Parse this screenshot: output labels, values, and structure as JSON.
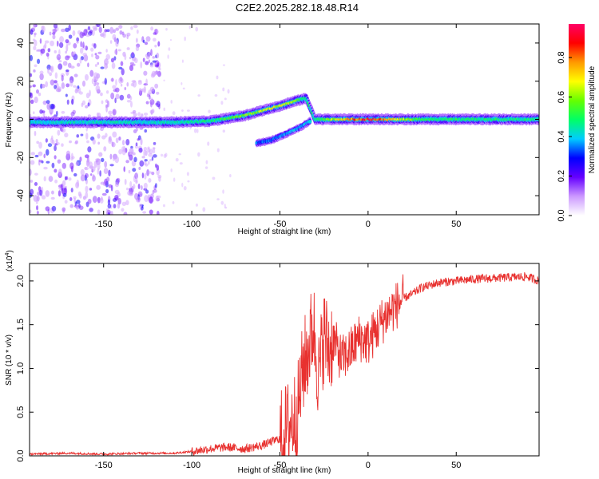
{
  "title": "C2E2.2025.282.18.48.R14",
  "chart_data": [
    {
      "type": "heatmap",
      "xlabel": "Height of straight line (km)",
      "ylabel": "Frequency (Hz)",
      "xlim": [
        -192,
        97
      ],
      "ylim": [
        -50,
        50
      ],
      "xticks": [
        -150,
        -100,
        -50,
        0,
        50
      ],
      "xtick_labels": [
        "-150",
        "-100",
        "-50",
        "0",
        "50"
      ],
      "yticks": [
        -40,
        -20,
        0,
        20,
        40
      ],
      "ytick_labels": [
        "-40",
        "-20",
        "0",
        "20",
        "40"
      ],
      "colorbar": {
        "label": "Normalized spectral amplitude",
        "range": [
          0,
          0.97
        ],
        "ticks": [
          0,
          0.2,
          0.4,
          0.6,
          0.8
        ],
        "tick_labels": [
          "0.0",
          "0.2",
          "0.4",
          "0.6",
          "0.8"
        ],
        "colors": [
          "#ffffff",
          "#cc99ff",
          "#6600ff",
          "#0000ff",
          "#00ccff",
          "#00ff66",
          "#66ff00",
          "#ffff00",
          "#ff9900",
          "#ff0000",
          "#ff0066"
        ]
      },
      "features": [
        {
          "name": "carrier",
          "x": [
            -192,
            -110,
            -90,
            -70,
            -50,
            -40,
            -35,
            -30,
            0,
            30,
            60,
            97
          ],
          "y": [
            -1.5,
            -1.5,
            -1,
            2,
            7,
            10,
            11,
            0,
            0,
            0,
            0,
            0
          ],
          "amplitude": [
            0.45,
            0.45,
            0.5,
            0.6,
            0.7,
            0.6,
            0.5,
            0.5,
            0.95,
            0.55,
            0.5,
            0.5
          ]
        },
        {
          "name": "lower-branch",
          "x": [
            -63,
            -55,
            -45,
            -38,
            -33
          ],
          "y": [
            -12.5,
            -11,
            -7,
            -4,
            -1
          ],
          "amplitude": [
            0.35,
            0.35,
            0.4,
            0.4,
            0.4
          ]
        }
      ]
    },
    {
      "type": "line",
      "xlabel": "Height of straight line (km)",
      "ylabel": "SNR (10 * v/v)",
      "ylabel_multiplier": "(x10",
      "ylabel_exponent": "4",
      "ylabel_close": ")",
      "xlim": [
        -192,
        97
      ],
      "ylim": [
        0,
        2.2
      ],
      "xticks": [
        -150,
        -100,
        -50,
        0,
        50
      ],
      "xtick_labels": [
        "-150",
        "-100",
        "-50",
        "0",
        "50"
      ],
      "yticks": [
        0,
        0.5,
        1.0,
        1.5,
        2.0
      ],
      "ytick_labels": [
        "0.0",
        "0.5",
        "1.0",
        "1.5",
        "2.0"
      ],
      "series": [
        {
          "color": "#e8312f",
          "x": [
            -192,
            -170,
            -150,
            -130,
            -110,
            -100,
            -90,
            -80,
            -70,
            -60,
            -50,
            -45,
            -40,
            -37,
            -34,
            -31,
            -28,
            -25,
            -22,
            -20,
            -15,
            -10,
            -5,
            0,
            5,
            10,
            15,
            20,
            25,
            30,
            40,
            50,
            60,
            70,
            80,
            90,
            97
          ],
          "y": [
            0.02,
            0.03,
            0.02,
            0.03,
            0.03,
            0.05,
            0.08,
            0.1,
            0.08,
            0.12,
            0.2,
            0.35,
            0.5,
            1.0,
            1.2,
            1.5,
            0.9,
            1.4,
            1.2,
            1.35,
            1.1,
            1.2,
            1.35,
            1.3,
            1.45,
            1.6,
            1.7,
            1.8,
            1.85,
            1.92,
            1.98,
            2.0,
            2.02,
            2.03,
            2.04,
            2.05,
            2.0
          ]
        }
      ]
    }
  ]
}
